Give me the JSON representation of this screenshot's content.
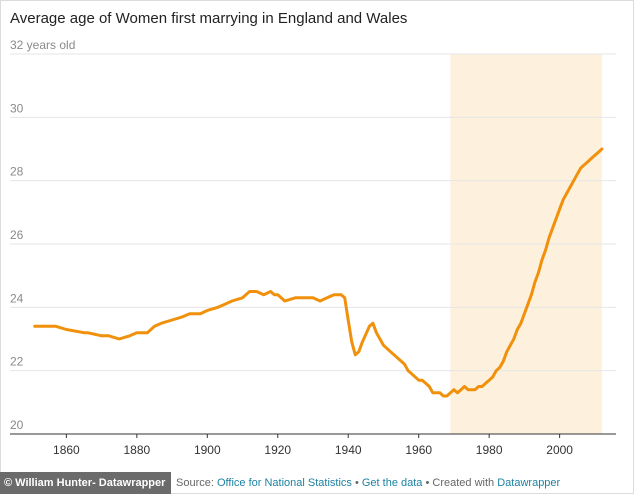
{
  "chart_data": {
    "type": "line",
    "title": "Average age of Women first marrying in England and Wales",
    "xlabel": "",
    "ylabel": "",
    "xlim": [
      1844,
      2016
    ],
    "ylim": [
      20,
      32
    ],
    "x_ticks": [
      1860,
      1880,
      1900,
      1920,
      1940,
      1960,
      1980,
      2000
    ],
    "y_ticks": [
      {
        "value": 20,
        "label": "20"
      },
      {
        "value": 22,
        "label": "22"
      },
      {
        "value": 24,
        "label": "24"
      },
      {
        "value": 26,
        "label": "26"
      },
      {
        "value": 28,
        "label": "28"
      },
      {
        "value": 30,
        "label": "30"
      },
      {
        "value": 32,
        "label": "32 years old"
      }
    ],
    "grid": "horizontal",
    "highlight_range": {
      "from": 1969,
      "to": 2012,
      "color": "#fdf0dc"
    },
    "series": [
      {
        "color": "#f0900b",
        "x": [
          1851,
          1855,
          1857,
          1860,
          1865,
          1866,
          1870,
          1872,
          1875,
          1878,
          1880,
          1883,
          1885,
          1887,
          1890,
          1893,
          1895,
          1898,
          1900,
          1903,
          1905,
          1907,
          1910,
          1912,
          1914,
          1916,
          1918,
          1919,
          1920,
          1922,
          1925,
          1928,
          1929,
          1930,
          1932,
          1934,
          1936,
          1938,
          1939,
          1940,
          1941,
          1942,
          1943,
          1944,
          1946,
          1947,
          1948,
          1950,
          1952,
          1954,
          1956,
          1957,
          1958,
          1960,
          1961,
          1962,
          1963,
          1964,
          1965,
          1966,
          1967,
          1968,
          1969,
          1970,
          1971,
          1972,
          1973,
          1974,
          1975,
          1976,
          1977,
          1978,
          1979,
          1980,
          1981,
          1982,
          1983,
          1984,
          1985,
          1986,
          1987,
          1988,
          1989,
          1990,
          1991,
          1992,
          1993,
          1994,
          1995,
          1996,
          1997,
          1998,
          1999,
          2000,
          2001,
          2002,
          2003,
          2004,
          2005,
          2006,
          2007,
          2008,
          2009,
          2010,
          2011,
          2012
        ],
        "y": [
          23.4,
          23.4,
          23.4,
          23.3,
          23.2,
          23.2,
          23.1,
          23.1,
          23.0,
          23.1,
          23.2,
          23.2,
          23.4,
          23.5,
          23.6,
          23.7,
          23.8,
          23.8,
          23.9,
          24.0,
          24.1,
          24.2,
          24.3,
          24.5,
          24.5,
          24.4,
          24.5,
          24.4,
          24.4,
          24.2,
          24.3,
          24.3,
          24.3,
          24.3,
          24.2,
          24.3,
          24.4,
          24.4,
          24.3,
          23.6,
          22.9,
          22.5,
          22.6,
          22.9,
          23.4,
          23.5,
          23.2,
          22.8,
          22.6,
          22.4,
          22.2,
          22.0,
          21.9,
          21.7,
          21.7,
          21.6,
          21.5,
          21.3,
          21.3,
          21.3,
          21.2,
          21.2,
          21.3,
          21.4,
          21.3,
          21.4,
          21.5,
          21.4,
          21.4,
          21.4,
          21.5,
          21.5,
          21.6,
          21.7,
          21.8,
          22.0,
          22.1,
          22.3,
          22.6,
          22.8,
          23.0,
          23.3,
          23.5,
          23.8,
          24.1,
          24.4,
          24.8,
          25.1,
          25.5,
          25.8,
          26.2,
          26.5,
          26.8,
          27.1,
          27.4,
          27.6,
          27.8,
          28.0,
          28.2,
          28.4,
          28.5,
          28.6,
          28.7,
          28.8,
          28.9,
          29.0
        ]
      }
    ]
  },
  "footer": {
    "watermark": "© William Hunter- Datawrapper",
    "source_prefix": "Source:",
    "source_link": "Office for National Statistics",
    "separator1": "•",
    "get_data": "Get the data",
    "separator2": "•",
    "created_with": "Created with",
    "datawrapper": "Datawrapper"
  }
}
